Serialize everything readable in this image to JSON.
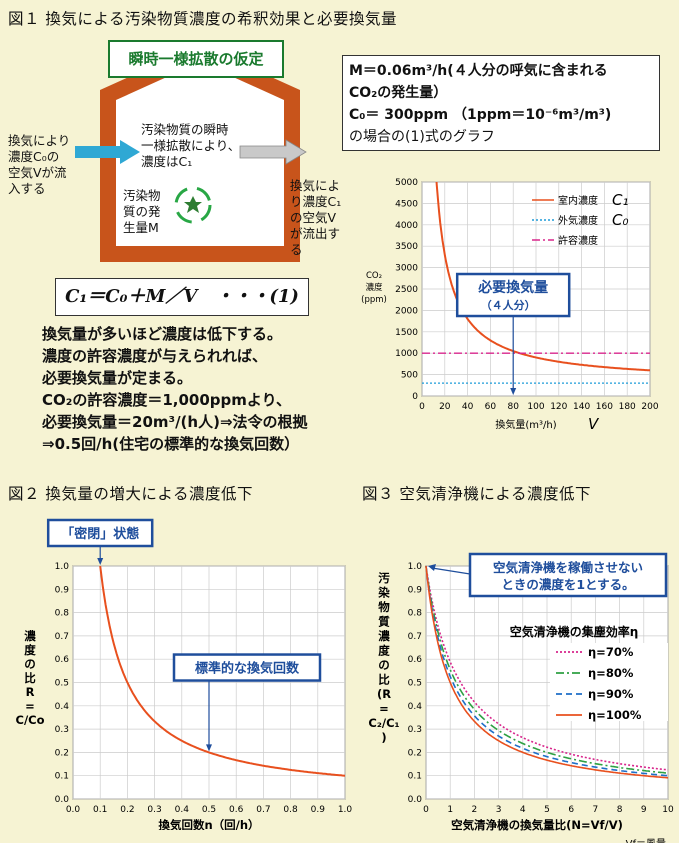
{
  "fig1": {
    "title": "図１ 換気による汚染物質濃度の希釈効果と必要換気量",
    "house_label": "瞬時一様拡散の仮定",
    "inflow_text": [
      "換気により",
      "濃度C₀の",
      "空気Vが流",
      "入する"
    ],
    "mixing_text": [
      "汚染物質の瞬時",
      "一様拡散により、",
      "濃度はC₁"
    ],
    "source_text": [
      "汚染物",
      "質の発",
      "生量M"
    ],
    "outflow_text": [
      "換気によ",
      "り濃度C₁",
      "の空気V",
      "が流出す",
      "る"
    ],
    "formula": "C₁＝C₀＋M／V　・・・(1)",
    "conditions": {
      "line1": "M＝0.06m³/h(４人分の呼気に含まれる",
      "line2": "CO₂の発生量）",
      "line3": "C₀＝ 300ppm （1ppm＝10⁻⁶m³/m³)",
      "line4": "の場合の(1)式のグラフ"
    },
    "explanation": [
      "換気量が多いほど濃度は低下する。",
      "濃度の許容濃度が与えられれば、",
      "必要換気量が定まる。",
      "CO₂の許容濃度＝1,000ppmより、",
      "必要換気量＝20m³/(h人)⇒法令の根拠",
      "⇒0.5回/h(住宅の標準的な換気回数）"
    ]
  },
  "fig2": {
    "title": "図２ 換気量の増大による濃度低下",
    "callout_closed": "「密閉」状態",
    "callout_standard": "標準的な換気回数"
  },
  "fig3": {
    "title": "図３ 空気清浄機による濃度低下",
    "callout": [
      "空気清浄機を稼働させない",
      "ときの濃度を1とする。"
    ],
    "legend_title": "空気清浄機の集塵効率η",
    "footnote": "Vf＝風量"
  },
  "colors": {
    "background": "#f6f3d3",
    "orange_line": "#e8501e",
    "house_wall": "#c8541b",
    "callout_blue": "#1f4e9c",
    "green_house_label": "#1a7a2e"
  },
  "chart_data": [
    {
      "type": "line",
      "xlabel": "換気量(m³/h)",
      "xlabel_var": "V",
      "ylabel": "CO₂濃度(ppm)",
      "xlim": [
        0,
        200
      ],
      "ylim": [
        0,
        5000
      ],
      "x_ticks": [
        0,
        20,
        40,
        60,
        80,
        100,
        120,
        140,
        160,
        180,
        200
      ],
      "y_ticks": [
        0,
        500,
        1000,
        1500,
        2000,
        2500,
        3000,
        3500,
        4000,
        4500,
        5000
      ],
      "grid": true,
      "legend_position": "top-right",
      "series": [
        {
          "name": "室内濃度",
          "var": "C₁",
          "formula": "300+60000/V",
          "color": "#e8501e",
          "style": "solid",
          "x": [
            12,
            15,
            20,
            30,
            40,
            50,
            60,
            80,
            100,
            120,
            150,
            200
          ],
          "y": [
            5300,
            4300,
            3300,
            2300,
            1800,
            1500,
            1300,
            1050,
            900,
            800,
            700,
            600
          ]
        },
        {
          "name": "外気濃度",
          "var": "C₀",
          "color": "#1e9cd8",
          "style": "dotted",
          "x": [
            0,
            200
          ],
          "y": [
            300,
            300
          ]
        },
        {
          "name": "許容濃度",
          "color": "#d8268c",
          "style": "dashdot",
          "x": [
            0,
            200
          ],
          "y": [
            1000,
            1000
          ]
        }
      ],
      "annotation": {
        "text": "必要換気量",
        "subtext": "（４人分）",
        "x": 80
      }
    },
    {
      "type": "line",
      "xlabel": "換気回数n（回/h）",
      "ylabel": "濃度の比 R = C/Co",
      "xlim": [
        0,
        1.0
      ],
      "ylim": [
        0,
        1.0
      ],
      "x_ticks": [
        0.0,
        0.1,
        0.2,
        0.3,
        0.4,
        0.5,
        0.6,
        0.7,
        0.8,
        0.9,
        1.0
      ],
      "y_ticks": [
        0.0,
        0.1,
        0.2,
        0.3,
        0.4,
        0.5,
        0.6,
        0.7,
        0.8,
        0.9,
        1.0
      ],
      "grid": true,
      "series": [
        {
          "formula": "0.1/n",
          "color": "#e8501e",
          "x": [
            0.1,
            0.125,
            0.15,
            0.2,
            0.25,
            0.3,
            0.4,
            0.5,
            0.6,
            0.7,
            0.8,
            0.9,
            1.0
          ],
          "y": [
            1.0,
            0.8,
            0.667,
            0.5,
            0.4,
            0.333,
            0.25,
            0.2,
            0.167,
            0.143,
            0.125,
            0.111,
            0.1
          ]
        }
      ],
      "annotations": [
        {
          "text": "「密閉」状態",
          "x": 0.1
        },
        {
          "text": "標準的な換気回数",
          "x": 0.5
        }
      ]
    },
    {
      "type": "line",
      "xlabel": "空気清浄機の換気量比(N=Vf/V)",
      "ylabel": "汚染物質濃度の比(R=C₂/C₁)",
      "xlim": [
        0,
        10
      ],
      "ylim": [
        0,
        1.0
      ],
      "x_ticks": [
        0,
        1,
        2,
        3,
        4,
        5,
        6,
        7,
        8,
        9,
        10
      ],
      "y_ticks": [
        0.0,
        0.1,
        0.2,
        0.3,
        0.4,
        0.5,
        0.6,
        0.7,
        0.8,
        0.9,
        1.0
      ],
      "grid": true,
      "legend_position": "right",
      "series": [
        {
          "name": "η=70%",
          "eta": 0.7,
          "formula": "1/(1+ηN)",
          "color": "#d8268c",
          "style": "dotted"
        },
        {
          "name": "η=80%",
          "eta": 0.8,
          "formula": "1/(1+ηN)",
          "color": "#2ea043",
          "style": "dashdot"
        },
        {
          "name": "η=90%",
          "eta": 0.9,
          "formula": "1/(1+ηN)",
          "color": "#1e6fc8",
          "style": "dashed"
        },
        {
          "name": "η=100%",
          "eta": 1.0,
          "formula": "1/(1+ηN)",
          "color": "#e8501e",
          "style": "solid"
        }
      ]
    }
  ]
}
